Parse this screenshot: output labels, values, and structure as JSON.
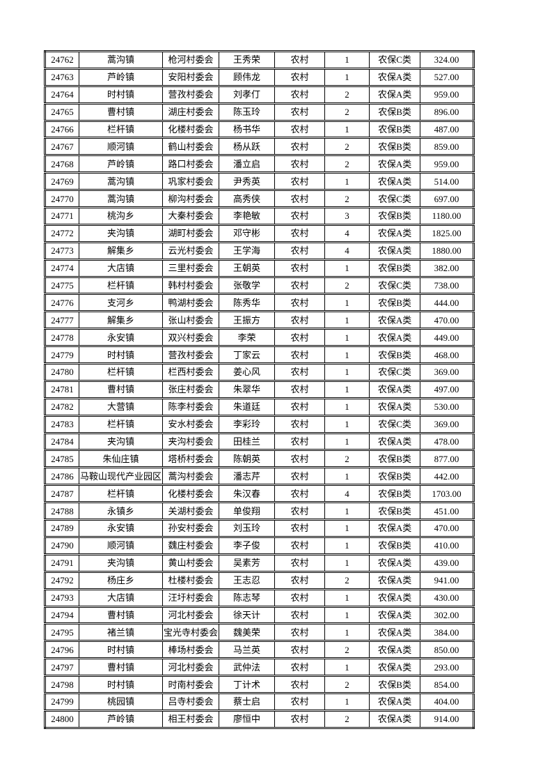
{
  "page": {
    "background_color": "#ffffff",
    "text_color": "#000000",
    "border_color": "#000000"
  },
  "table": {
    "column_keys": [
      "serial_number",
      "town",
      "village_committee",
      "person_name",
      "residence_type",
      "person_count",
      "insurance_class",
      "amount"
    ],
    "rows": [
      [
        "24762",
        "蒿沟镇",
        "枪河村委会",
        "王秀荣",
        "农村",
        "1",
        "农保C类",
        "324.00"
      ],
      [
        "24763",
        "芦岭镇",
        "安阳村委会",
        "顾伟龙",
        "农村",
        "1",
        "农保A类",
        "527.00"
      ],
      [
        "24764",
        "时村镇",
        "营孜村委会",
        "刘孝仃",
        "农村",
        "2",
        "农保A类",
        "959.00"
      ],
      [
        "24765",
        "曹村镇",
        "湖庄村委会",
        "陈玉玲",
        "农村",
        "2",
        "农保B类",
        "896.00"
      ],
      [
        "24766",
        "栏杆镇",
        "化楼村委会",
        "杨书华",
        "农村",
        "1",
        "农保B类",
        "487.00"
      ],
      [
        "24767",
        "顺河镇",
        "鹤山村委会",
        "杨从跃",
        "农村",
        "2",
        "农保B类",
        "859.00"
      ],
      [
        "24768",
        "芦岭镇",
        "路口村委会",
        "潘立启",
        "农村",
        "2",
        "农保A类",
        "959.00"
      ],
      [
        "24769",
        "蒿沟镇",
        "巩家村委会",
        "尹秀英",
        "农村",
        "1",
        "农保A类",
        "514.00"
      ],
      [
        "24770",
        "蒿沟镇",
        "柳沟村委会",
        "高秀侠",
        "农村",
        "2",
        "农保C类",
        "697.00"
      ],
      [
        "24771",
        "桃沟乡",
        "大秦村委会",
        "李艳敏",
        "农村",
        "3",
        "农保B类",
        "1180.00"
      ],
      [
        "24772",
        "夹沟镇",
        "湖町村委会",
        "邓守彬",
        "农村",
        "4",
        "农保A类",
        "1825.00"
      ],
      [
        "24773",
        "解集乡",
        "云光村委会",
        "王学海",
        "农村",
        "4",
        "农保A类",
        "1880.00"
      ],
      [
        "24774",
        "大店镇",
        "三里村委会",
        "王朝英",
        "农村",
        "1",
        "农保B类",
        "382.00"
      ],
      [
        "24775",
        "栏杆镇",
        "韩村村委会",
        "张敬学",
        "农村",
        "2",
        "农保C类",
        "738.00"
      ],
      [
        "24776",
        "支河乡",
        "鸭湖村委会",
        "陈秀华",
        "农村",
        "1",
        "农保B类",
        "444.00"
      ],
      [
        "24777",
        "解集乡",
        "张山村委会",
        "王振方",
        "农村",
        "1",
        "农保A类",
        "470.00"
      ],
      [
        "24778",
        "永安镇",
        "双兴村委会",
        "李荣",
        "农村",
        "1",
        "农保A类",
        "449.00"
      ],
      [
        "24779",
        "时村镇",
        "营孜村委会",
        "丁家云",
        "农村",
        "1",
        "农保B类",
        "468.00"
      ],
      [
        "24780",
        "栏杆镇",
        "栏西村委会",
        "姜心风",
        "农村",
        "1",
        "农保C类",
        "369.00"
      ],
      [
        "24781",
        "曹村镇",
        "张庄村委会",
        "朱翠华",
        "农村",
        "1",
        "农保A类",
        "497.00"
      ],
      [
        "24782",
        "大营镇",
        "陈李村委会",
        "朱道廷",
        "农村",
        "1",
        "农保A类",
        "530.00"
      ],
      [
        "24783",
        "栏杆镇",
        "安水村委会",
        "李彩玲",
        "农村",
        "1",
        "农保C类",
        "369.00"
      ],
      [
        "24784",
        "夹沟镇",
        "夹沟村委会",
        "田桂兰",
        "农村",
        "1",
        "农保A类",
        "478.00"
      ],
      [
        "24785",
        "朱仙庄镇",
        "塔桥村委会",
        "陈朝英",
        "农村",
        "2",
        "农保B类",
        "877.00"
      ],
      [
        "24786",
        "马鞍山现代产业园区",
        "蒿沟村委会",
        "潘志芹",
        "农村",
        "1",
        "农保B类",
        "442.00"
      ],
      [
        "24787",
        "栏杆镇",
        "化楼村委会",
        "朱汉春",
        "农村",
        "4",
        "农保B类",
        "1703.00"
      ],
      [
        "24788",
        "永镇乡",
        "关湖村委会",
        "单俊翔",
        "农村",
        "1",
        "农保B类",
        "451.00"
      ],
      [
        "24789",
        "永安镇",
        "孙安村委会",
        "刘玉玲",
        "农村",
        "1",
        "农保A类",
        "470.00"
      ],
      [
        "24790",
        "顺河镇",
        "魏庄村委会",
        "李子俊",
        "农村",
        "1",
        "农保B类",
        "410.00"
      ],
      [
        "24791",
        "夹沟镇",
        "黄山村委会",
        "吴素芳",
        "农村",
        "1",
        "农保A类",
        "439.00"
      ],
      [
        "24792",
        "杨庄乡",
        "杜楼村委会",
        "王志忍",
        "农村",
        "2",
        "农保A类",
        "941.00"
      ],
      [
        "24793",
        "大店镇",
        "汪圩村委会",
        "陈志琴",
        "农村",
        "1",
        "农保A类",
        "430.00"
      ],
      [
        "24794",
        "曹村镇",
        "河北村委会",
        "徐天计",
        "农村",
        "1",
        "农保A类",
        "302.00"
      ],
      [
        "24795",
        "褚兰镇",
        "宝光寺村委会",
        "魏美荣",
        "农村",
        "1",
        "农保A类",
        "384.00"
      ],
      [
        "24796",
        "时村镇",
        "棒场村委会",
        "马兰英",
        "农村",
        "2",
        "农保A类",
        "850.00"
      ],
      [
        "24797",
        "曹村镇",
        "河北村委会",
        "武仲法",
        "农村",
        "1",
        "农保A类",
        "293.00"
      ],
      [
        "24798",
        "时村镇",
        "时南村委会",
        "丁计术",
        "农村",
        "2",
        "农保B类",
        "854.00"
      ],
      [
        "24799",
        "桃园镇",
        "吕寺村委会",
        "蔡士启",
        "农村",
        "1",
        "农保A类",
        "404.00"
      ],
      [
        "24800",
        "芦岭镇",
        "相王村委会",
        "廖恒中",
        "农村",
        "2",
        "农保A类",
        "914.00"
      ]
    ]
  }
}
